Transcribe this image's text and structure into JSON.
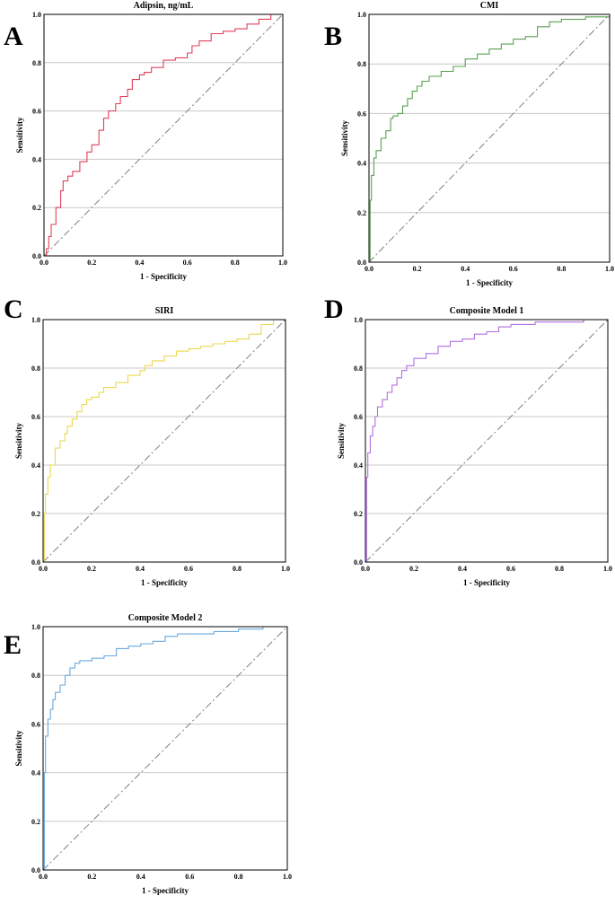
{
  "figure": {
    "colors": {
      "grid": "#c8c8c8",
      "frame": "#000000",
      "diagonal": "#808080"
    }
  },
  "chart_data": [
    {
      "type": "line",
      "panel": "A",
      "title": "Adipsin, ng/mL",
      "xlabel": "1 - Specificity",
      "ylabel": "Sensitivity",
      "xlim": [
        0,
        1
      ],
      "ylim": [
        0,
        1
      ],
      "xticks": [
        "0.0",
        "0.2",
        "0.4",
        "0.6",
        "0.8",
        "1.0"
      ],
      "yticks": [
        "0.0",
        "0.2",
        "0.4",
        "0.6",
        "0.8",
        "1.0"
      ],
      "grid": "horizontal",
      "color": "#e0405a",
      "reference_line": [
        [
          0,
          0
        ],
        [
          1,
          1
        ]
      ],
      "x": [
        0.0,
        0.01,
        0.02,
        0.03,
        0.05,
        0.07,
        0.08,
        0.1,
        0.12,
        0.15,
        0.18,
        0.2,
        0.23,
        0.25,
        0.27,
        0.3,
        0.32,
        0.35,
        0.37,
        0.4,
        0.42,
        0.45,
        0.5,
        0.55,
        0.6,
        0.62,
        0.65,
        0.7,
        0.75,
        0.8,
        0.85,
        0.9,
        0.95,
        1.0
      ],
      "y": [
        0.0,
        0.03,
        0.08,
        0.13,
        0.2,
        0.27,
        0.31,
        0.33,
        0.35,
        0.39,
        0.43,
        0.46,
        0.52,
        0.57,
        0.6,
        0.63,
        0.66,
        0.69,
        0.73,
        0.75,
        0.76,
        0.78,
        0.81,
        0.82,
        0.84,
        0.87,
        0.89,
        0.92,
        0.93,
        0.94,
        0.96,
        0.98,
        1.0,
        1.0
      ]
    },
    {
      "type": "line",
      "panel": "B",
      "title": "CMI",
      "xlabel": "1 - Specificity",
      "ylabel": "Sensitivity",
      "xlim": [
        0,
        1
      ],
      "ylim": [
        0,
        1
      ],
      "xticks": [
        "0.0",
        "0.2",
        "0.4",
        "0.6",
        "0.8",
        "1.0"
      ],
      "yticks": [
        "0.0",
        "0.2",
        "0.4",
        "0.6",
        "0.8",
        "1.0"
      ],
      "grid": "horizontal",
      "color": "#5aa050",
      "reference_line": [
        [
          0,
          0
        ],
        [
          1,
          1
        ]
      ],
      "x": [
        0.0,
        0.005,
        0.01,
        0.02,
        0.03,
        0.05,
        0.07,
        0.09,
        0.1,
        0.12,
        0.14,
        0.16,
        0.18,
        0.2,
        0.22,
        0.25,
        0.3,
        0.35,
        0.4,
        0.45,
        0.5,
        0.55,
        0.6,
        0.65,
        0.7,
        0.75,
        0.8,
        0.9,
        1.0
      ],
      "y": [
        0.0,
        0.25,
        0.35,
        0.42,
        0.45,
        0.5,
        0.53,
        0.58,
        0.59,
        0.6,
        0.63,
        0.66,
        0.69,
        0.71,
        0.73,
        0.75,
        0.77,
        0.79,
        0.82,
        0.84,
        0.86,
        0.88,
        0.9,
        0.91,
        0.95,
        0.97,
        0.98,
        0.99,
        1.0
      ]
    },
    {
      "type": "line",
      "panel": "C",
      "title": "SIRI",
      "xlabel": "1 - Specificity",
      "ylabel": "Sensitivity",
      "xlim": [
        0,
        1
      ],
      "ylim": [
        0,
        1
      ],
      "xticks": [
        "0.0",
        "0.2",
        "0.4",
        "0.6",
        "0.8",
        "1.0"
      ],
      "yticks": [
        "0.0",
        "0.2",
        "0.4",
        "0.6",
        "0.8",
        "1.0"
      ],
      "grid": "horizontal",
      "color": "#ecd850",
      "reference_line": [
        [
          0,
          0
        ],
        [
          1,
          1
        ]
      ],
      "x": [
        0.0,
        0.005,
        0.01,
        0.02,
        0.03,
        0.05,
        0.07,
        0.09,
        0.1,
        0.12,
        0.14,
        0.16,
        0.18,
        0.2,
        0.23,
        0.25,
        0.3,
        0.35,
        0.4,
        0.42,
        0.45,
        0.5,
        0.55,
        0.6,
        0.65,
        0.7,
        0.75,
        0.8,
        0.85,
        0.9,
        0.95,
        1.0
      ],
      "y": [
        0.0,
        0.2,
        0.28,
        0.35,
        0.4,
        0.47,
        0.5,
        0.53,
        0.56,
        0.59,
        0.62,
        0.65,
        0.67,
        0.68,
        0.7,
        0.72,
        0.74,
        0.77,
        0.79,
        0.81,
        0.83,
        0.85,
        0.87,
        0.88,
        0.89,
        0.9,
        0.91,
        0.92,
        0.94,
        0.98,
        1.0,
        1.0
      ]
    },
    {
      "type": "line",
      "panel": "D",
      "title": "Composite Model 1",
      "xlabel": "1 - Specificity",
      "ylabel": "Sensitivity",
      "xlim": [
        0,
        1
      ],
      "ylim": [
        0,
        1
      ],
      "xticks": [
        "0.0",
        "0.2",
        "0.4",
        "0.6",
        "0.8",
        "1.0"
      ],
      "yticks": [
        "0.0",
        "0.2",
        "0.4",
        "0.6",
        "0.8",
        "1.0"
      ],
      "grid": "horizontal",
      "color": "#b070e0",
      "reference_line": [
        [
          0,
          0
        ],
        [
          1,
          1
        ]
      ],
      "x": [
        0.0,
        0.005,
        0.01,
        0.02,
        0.03,
        0.04,
        0.05,
        0.07,
        0.09,
        0.11,
        0.13,
        0.15,
        0.17,
        0.2,
        0.25,
        0.3,
        0.35,
        0.4,
        0.45,
        0.5,
        0.55,
        0.6,
        0.7,
        0.8,
        0.9,
        1.0
      ],
      "y": [
        0.0,
        0.35,
        0.45,
        0.52,
        0.56,
        0.6,
        0.64,
        0.67,
        0.7,
        0.73,
        0.76,
        0.79,
        0.81,
        0.84,
        0.86,
        0.89,
        0.91,
        0.92,
        0.94,
        0.95,
        0.97,
        0.98,
        0.99,
        0.99,
        1.0,
        1.0
      ]
    },
    {
      "type": "line",
      "panel": "E",
      "title": "Composite Model 2",
      "xlabel": "1 - Specificity",
      "ylabel": "Sensitivity",
      "xlim": [
        0,
        1
      ],
      "ylim": [
        0,
        1
      ],
      "xticks": [
        "0.0",
        "0.2",
        "0.4",
        "0.6",
        "0.8",
        "1.0"
      ],
      "yticks": [
        "0.0",
        "0.2",
        "0.4",
        "0.6",
        "0.8",
        "1.0"
      ],
      "grid": "horizontal",
      "color": "#6aaae0",
      "reference_line": [
        [
          0,
          0
        ],
        [
          1,
          1
        ]
      ],
      "x": [
        0.0,
        0.005,
        0.01,
        0.02,
        0.03,
        0.04,
        0.05,
        0.07,
        0.09,
        0.11,
        0.13,
        0.15,
        0.2,
        0.25,
        0.3,
        0.35,
        0.4,
        0.45,
        0.5,
        0.55,
        0.6,
        0.7,
        0.8,
        0.9,
        1.0
      ],
      "y": [
        0.0,
        0.4,
        0.55,
        0.62,
        0.66,
        0.7,
        0.73,
        0.76,
        0.8,
        0.83,
        0.85,
        0.86,
        0.87,
        0.88,
        0.91,
        0.92,
        0.93,
        0.94,
        0.96,
        0.97,
        0.97,
        0.98,
        0.99,
        1.0,
        1.0
      ]
    }
  ]
}
